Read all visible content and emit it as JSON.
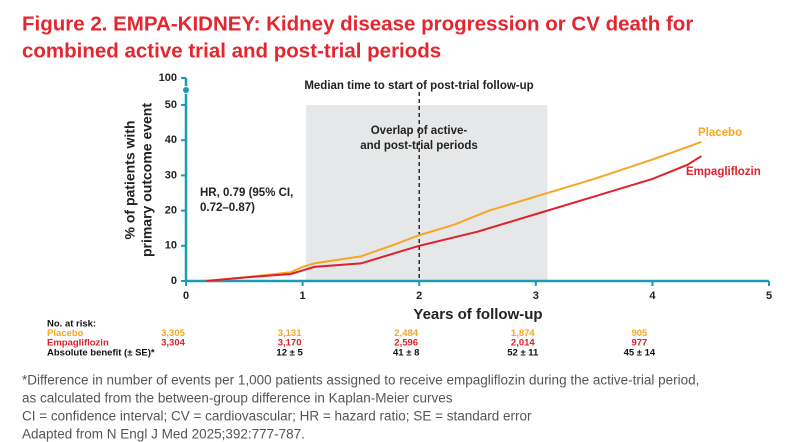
{
  "chart_data": {
    "type": "line",
    "title": [
      "Figure 2. EMPA-KIDNEY: Kidney disease progression or CV death for",
      "combined active trial and post-trial periods"
    ],
    "ylabel": [
      "% of patients with",
      "primary outcome event"
    ],
    "xlabel": "Years of follow-up",
    "xlim": [
      0,
      5
    ],
    "xticks": [
      0,
      1,
      2,
      3,
      4,
      5
    ],
    "ylim": [
      0,
      100
    ],
    "yticks": [
      0,
      10,
      20,
      30,
      40,
      50,
      100
    ],
    "axis_break": true,
    "axis_color": "#1b9cb5",
    "shaded_region": {
      "x": [
        1.03,
        3.1
      ],
      "color": "#e6e7e8"
    },
    "vline": {
      "x": 2
    },
    "annotations": [
      {
        "lines": [
          "Median time to start of post-trial follow-up"
        ]
      },
      {
        "lines": [
          "Overlap of active-",
          "and post-trial periods"
        ]
      },
      {
        "lines": [
          "HR, 0.79 (95% CI,",
          "0.72–0.87)"
        ]
      }
    ],
    "series": [
      {
        "name": "Placebo",
        "color": "#f5a623",
        "x": [
          0.17,
          0.5,
          0.9,
          1.0,
          1.1,
          1.5,
          1.8,
          2.0,
          2.3,
          2.6,
          3.0,
          3.5,
          4.0,
          4.42
        ],
        "values": [
          0,
          1,
          2.5,
          4,
          5,
          7,
          10.5,
          13,
          16,
          20,
          24,
          29,
          34.5,
          39.5
        ]
      },
      {
        "name": "Empagliflozin",
        "color": "#e0202a",
        "x": [
          0.17,
          0.5,
          0.9,
          1.0,
          1.1,
          1.5,
          1.8,
          2.0,
          2.5,
          3.0,
          3.5,
          4.0,
          4.3,
          4.42
        ],
        "values": [
          0,
          1,
          2,
          3,
          4,
          5,
          8,
          10,
          14,
          19,
          24,
          29,
          33,
          35.5
        ]
      }
    ],
    "risk_table": {
      "title": "No. at risk:",
      "x": [
        0,
        1,
        2,
        3,
        4
      ],
      "rows": [
        {
          "name": "Placebo",
          "color": "#f5a623",
          "values": [
            "3,305",
            "3,131",
            "2,484",
            "1,874",
            "905"
          ]
        },
        {
          "name": "Empagliflozin",
          "color": "#e0202a",
          "values": [
            "3,304",
            "3,170",
            "2,596",
            "2,014",
            "977"
          ]
        }
      ],
      "benefit": {
        "name": "Absolute benefit (± SE)*",
        "x": [
          1,
          2,
          3,
          4
        ],
        "values": [
          "12 ± 5",
          "41 ± 8",
          "52 ± 11",
          "45 ± 14"
        ]
      }
    },
    "footnotes": [
      "*Difference in number of events per 1,000 patients assigned to receive empagliflozin during the active-trial period,",
      "as calculated from the between-group difference in Kaplan-Meier curves",
      "CI = confidence interval; CV = cardiovascular; HR = hazard ratio; SE = standard error",
      "Adapted from N Engl J Med 2025;392:777-787."
    ]
  }
}
